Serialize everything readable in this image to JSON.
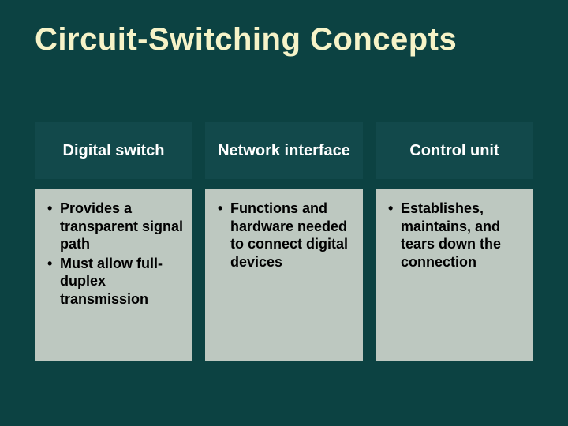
{
  "title": "Circuit-Switching Concepts",
  "columns": [
    {
      "header": "Digital switch",
      "bullets": [
        "Provides a transparent signal path",
        "Must allow full-duplex transmission"
      ]
    },
    {
      "header": "Network interface",
      "bullets": [
        "Functions and hardware needed to connect digital devices"
      ]
    },
    {
      "header": "Control unit",
      "bullets": [
        "Establishes, maintains, and tears down the connection"
      ]
    }
  ],
  "styling": {
    "background_color": "#0c4242",
    "title_color": "#f6f3c8",
    "title_fontsize": 40,
    "header_bg": "#12494b",
    "header_text_color": "#ffffff",
    "header_fontsize": 20,
    "body_bg": "#bdc8c0",
    "body_text_color": "#000000",
    "body_fontsize": 18,
    "column_gap": 16
  }
}
